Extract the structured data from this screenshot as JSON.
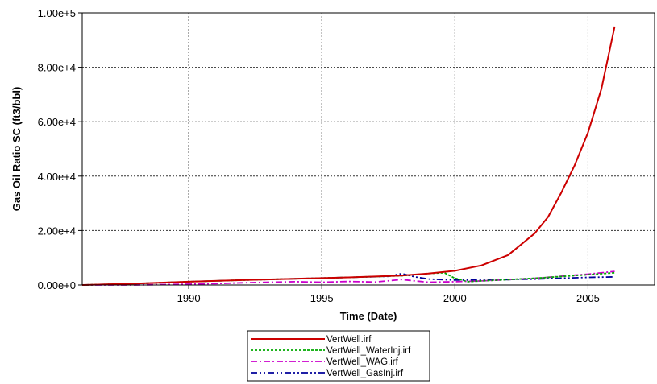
{
  "chart_data": {
    "type": "line",
    "title": "",
    "xlabel": "Time (Date)",
    "ylabel": "Gas Oil Ratio SC (ft3/bbl)",
    "xlim": [
      1986,
      2007.5
    ],
    "ylim": [
      0,
      100000
    ],
    "x_ticks": [
      1990,
      1995,
      2000,
      2005
    ],
    "x_tick_labels": [
      "1990",
      "1995",
      "2000",
      "2005"
    ],
    "y_ticks": [
      0,
      20000,
      40000,
      60000,
      80000,
      100000
    ],
    "y_tick_labels": [
      "0.00e+0",
      "2.00e+4",
      "4.00e+4",
      "6.00e+4",
      "8.00e+4",
      "1.00e+5"
    ],
    "grid": true,
    "legend_position": "bottom-center",
    "series": [
      {
        "name": "VertWell.irf",
        "color": "#cc0000",
        "style": "solid",
        "x": [
          1986,
          1988,
          1990,
          1992,
          1994,
          1996,
          1998,
          1999,
          2000,
          2001,
          2002,
          2003,
          2003.5,
          2004,
          2004.5,
          2005,
          2005.5,
          2006
        ],
        "y": [
          0,
          500,
          1200,
          1800,
          2300,
          2800,
          3500,
          4200,
          5200,
          7200,
          11000,
          19000,
          25000,
          34000,
          44000,
          56000,
          72000,
          95000
        ]
      },
      {
        "name": "VertWell_WaterInj.irf",
        "color": "#00aa00",
        "style": "dotted",
        "x": [
          1986,
          1988,
          1990,
          1992,
          1994,
          1996,
          1998,
          1999,
          1999.6,
          2000,
          2000.5,
          2001,
          2003,
          2005,
          2006
        ],
        "y": [
          0,
          500,
          1200,
          1800,
          2300,
          2800,
          3400,
          4200,
          4500,
          2500,
          1200,
          1500,
          2500,
          3800,
          4500
        ]
      },
      {
        "name": "VertWell_WAG.irf",
        "color": "#cc00cc",
        "style": "dashdot",
        "x": [
          1986,
          1988,
          1990,
          1991,
          1992,
          1994,
          1995,
          1996,
          1997,
          1998,
          1999,
          2000,
          2001,
          2003,
          2005,
          2006
        ],
        "y": [
          0,
          0,
          300,
          500,
          800,
          1200,
          1000,
          1300,
          1100,
          2000,
          1000,
          1200,
          1500,
          2500,
          4000,
          5000
        ]
      },
      {
        "name": "VertWell_GasInj.irf",
        "color": "#000099",
        "style": "dashdotdot",
        "x": [
          1986,
          1988,
          1990,
          1992,
          1994,
          1996,
          1997.5,
          1998,
          1998.5,
          1999,
          2000,
          2001,
          2003,
          2005,
          2006
        ],
        "y": [
          0,
          500,
          1200,
          1800,
          2300,
          2800,
          3200,
          4200,
          3000,
          2200,
          1800,
          1800,
          2200,
          2800,
          3000
        ]
      }
    ]
  }
}
